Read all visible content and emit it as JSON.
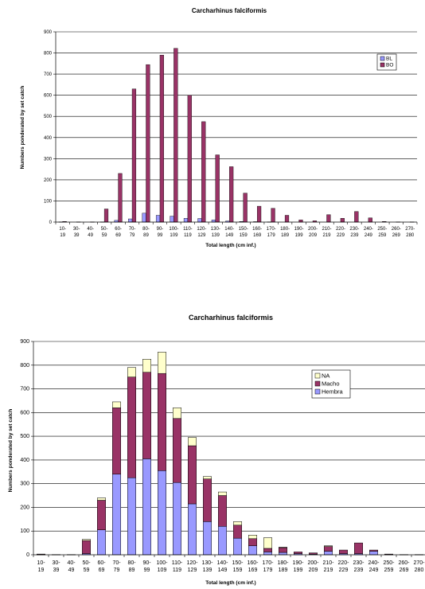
{
  "chart_data": [
    {
      "type": "bar",
      "title": "Carcharhinus falciformis",
      "xlabel": "Total length (cm inf.)",
      "ylabel": "Numbers ponderated by set catch",
      "ylim": [
        0,
        900
      ],
      "yticks": [
        0,
        100,
        200,
        300,
        400,
        500,
        600,
        700,
        800,
        900
      ],
      "grid": true,
      "legend": "top-right",
      "categories": [
        [
          "10-",
          "19"
        ],
        [
          "30-",
          "39"
        ],
        [
          "40-",
          "49"
        ],
        [
          "50-",
          "59"
        ],
        [
          "60-",
          "69"
        ],
        [
          "70-",
          "79"
        ],
        [
          "80-",
          "89"
        ],
        [
          "90-",
          "99"
        ],
        [
          "100-",
          "109"
        ],
        [
          "110-",
          "119"
        ],
        [
          "120-",
          "129"
        ],
        [
          "130-",
          "139"
        ],
        [
          "140-",
          "149"
        ],
        [
          "150-",
          "159"
        ],
        [
          "160-",
          "169"
        ],
        [
          "170-",
          "179"
        ],
        [
          "180-",
          "189"
        ],
        [
          "190-",
          "199"
        ],
        [
          "200-",
          "209"
        ],
        [
          "210-",
          "219"
        ],
        [
          "220-",
          "229"
        ],
        [
          "230-",
          "239"
        ],
        [
          "240-",
          "249"
        ],
        [
          "250-",
          "259"
        ],
        [
          "260-",
          "269"
        ],
        [
          "270-",
          "280"
        ]
      ],
      "series": [
        {
          "name": "BL",
          "color": "#9999ff",
          "values": [
            1,
            0,
            0,
            1,
            8,
            15,
            42,
            32,
            28,
            18,
            17,
            10,
            5,
            3,
            2,
            1,
            0,
            0,
            0,
            0,
            0,
            0,
            0,
            0,
            0,
            0
          ]
        },
        {
          "name": "BO",
          "color": "#993366",
          "values": [
            3,
            1,
            1,
            62,
            230,
            630,
            745,
            790,
            822,
            600,
            475,
            318,
            262,
            137,
            75,
            65,
            32,
            10,
            6,
            35,
            18,
            50,
            20,
            3,
            1,
            1
          ]
        }
      ]
    },
    {
      "type": "bar",
      "stacked": true,
      "title": "Carcharhinus falciformis",
      "xlabel": "Total length (cm inf.)",
      "ylabel": "Numbers ponderated by set catch",
      "ylim": [
        0,
        900
      ],
      "yticks": [
        0,
        100,
        200,
        300,
        400,
        500,
        600,
        700,
        800,
        900
      ],
      "grid": true,
      "legend": "top-right",
      "categories": [
        [
          "10-",
          "19"
        ],
        [
          "30-",
          "39"
        ],
        [
          "40-",
          "49"
        ],
        [
          "50-",
          "59"
        ],
        [
          "60-",
          "69"
        ],
        [
          "70-",
          "79"
        ],
        [
          "80-",
          "89"
        ],
        [
          "90-",
          "99"
        ],
        [
          "100-",
          "109"
        ],
        [
          "110-",
          "119"
        ],
        [
          "120-",
          "129"
        ],
        [
          "130-",
          "139"
        ],
        [
          "140-",
          "149"
        ],
        [
          "150-",
          "159"
        ],
        [
          "160-",
          "169"
        ],
        [
          "170-",
          "179"
        ],
        [
          "180-",
          "189"
        ],
        [
          "190-",
          "199"
        ],
        [
          "200-",
          "209"
        ],
        [
          "210-",
          "219"
        ],
        [
          "220-",
          "229"
        ],
        [
          "230-",
          "239"
        ],
        [
          "240-",
          "249"
        ],
        [
          "250-",
          "259"
        ],
        [
          "260-",
          "269"
        ],
        [
          "270-",
          "280"
        ]
      ],
      "series": [
        {
          "name": "Hembra",
          "color": "#9999ff",
          "values": [
            1,
            0,
            0,
            5,
            105,
            340,
            325,
            405,
            355,
            305,
            215,
            140,
            120,
            70,
            38,
            12,
            10,
            5,
            3,
            15,
            5,
            5,
            15,
            1,
            0,
            0
          ]
        },
        {
          "name": "Macho",
          "color": "#993366",
          "values": [
            2,
            1,
            1,
            55,
            125,
            280,
            425,
            365,
            410,
            270,
            245,
            180,
            130,
            55,
            30,
            15,
            20,
            7,
            5,
            20,
            15,
            45,
            5,
            2,
            1,
            1
          ]
        },
        {
          "name": "NA",
          "color": "#ffffcc",
          "values": [
            0,
            0,
            0,
            5,
            10,
            25,
            40,
            55,
            90,
            45,
            35,
            10,
            15,
            15,
            15,
            45,
            2,
            0,
            0,
            3,
            0,
            0,
            0,
            0,
            0,
            0
          ]
        }
      ]
    }
  ]
}
